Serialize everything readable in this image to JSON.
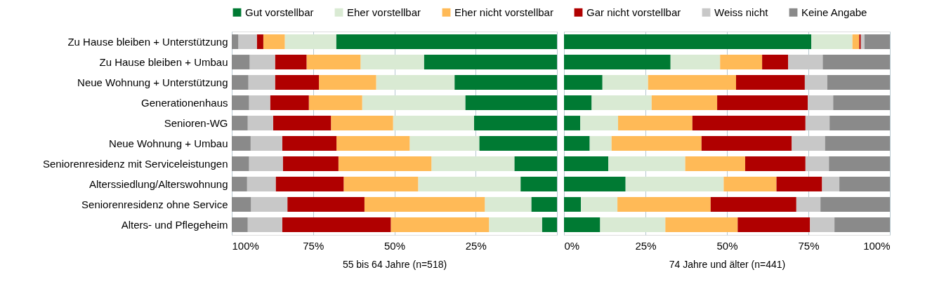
{
  "chart_data": [
    {
      "type": "bar",
      "orientation": "horizontal",
      "stacked": true,
      "xlabel": "55 bis 64 Jahre (n=518)",
      "categories": [
        "Zu Hause bleiben + Unterstützung",
        "Zu Hause bleiben + Umbau",
        "Neue Wohnung + Unterstützung",
        "Generationenhaus",
        "Senioren-WG",
        "Neue Wohnung + Umbau",
        "Seniorenresidenz mit Serviceleistungen",
        "Alterssiedlung/Alterswohnung",
        "Seniorenresidenz ohne Service",
        "Alters- und Pflegeheim"
      ],
      "series": [
        {
          "name": "Gut vorstellbar",
          "color": "#007a33",
          "values": [
            67.9,
            40.9,
            31.5,
            28.2,
            25.5,
            23.9,
            13.1,
            11.2,
            7.9,
            4.6
          ]
        },
        {
          "name": "Eher vorstellbar",
          "color": "#d9ead3",
          "values": [
            15.8,
            19.5,
            24.1,
            31.7,
            24.9,
            21.4,
            25.5,
            31.5,
            14.3,
            16.3
          ]
        },
        {
          "name": "Eher nicht vorstellbar",
          "color": "#ffba57",
          "values": [
            6.6,
            16.6,
            17.6,
            16.4,
            19.1,
            22.5,
            28.6,
            22.9,
            37.0,
            30.2
          ]
        },
        {
          "name": "Gar nicht vorstellbar",
          "color": "#b00000",
          "values": [
            2.0,
            9.7,
            13.5,
            11.9,
            17.8,
            16.7,
            17.1,
            20.9,
            23.7,
            33.4
          ]
        },
        {
          "name": "Weiss nicht",
          "color": "#c8c8c8",
          "values": [
            5.7,
            7.8,
            8.2,
            6.5,
            7.8,
            9.7,
            10.4,
            8.8,
            11.2,
            10.6
          ]
        },
        {
          "name": "Keine Angabe",
          "color": "#8a8a8a",
          "values": [
            2.0,
            5.5,
            5.1,
            5.3,
            4.9,
            5.8,
            5.3,
            4.7,
            5.9,
            4.9
          ]
        }
      ],
      "xlim": [
        100,
        0
      ],
      "xticks": [
        {
          "value": 100,
          "label": "100%"
        },
        {
          "value": 75,
          "label": "75%"
        },
        {
          "value": 50,
          "label": "50%"
        },
        {
          "value": 25,
          "label": "25%"
        },
        {
          "value": 0,
          "label": null
        }
      ],
      "grid": "x",
      "legend": "top"
    },
    {
      "type": "bar",
      "orientation": "horizontal",
      "stacked": true,
      "xlabel": "74 Jahre und älter (n=441)",
      "categories": [
        null,
        null,
        null,
        null,
        null,
        null,
        null,
        null,
        null,
        null
      ],
      "series": [
        {
          "name": "Gut vorstellbar",
          "color": "#007a33",
          "values": [
            75.9,
            32.7,
            11.8,
            8.5,
            5.0,
            7.9,
            13.6,
            18.9,
            5.2,
            11.1
          ]
        },
        {
          "name": "Eher vorstellbar",
          "color": "#d9ead3",
          "values": [
            12.6,
            15.2,
            14.0,
            18.4,
            11.6,
            6.7,
            23.6,
            30.1,
            11.2,
            20.0
          ]
        },
        {
          "name": "Eher nicht vorstellbar",
          "color": "#ffba57",
          "values": [
            2.1,
            12.9,
            27.0,
            20.1,
            22.8,
            27.6,
            18.4,
            16.2,
            28.6,
            22.2
          ]
        },
        {
          "name": "Gar nicht vorstellbar",
          "color": "#b00000",
          "values": [
            0.5,
            8.0,
            21.1,
            27.8,
            34.7,
            27.7,
            18.5,
            14.0,
            26.3,
            22.2
          ]
        },
        {
          "name": "Weiss nicht",
          "color": "#c8c8c8",
          "values": [
            1.1,
            10.6,
            6.9,
            7.8,
            7.4,
            10.2,
            7.2,
            5.3,
            7.4,
            7.5
          ]
        },
        {
          "name": "Keine Angabe",
          "color": "#8a8a8a",
          "values": [
            7.8,
            20.6,
            19.2,
            17.4,
            18.5,
            19.9,
            18.7,
            15.5,
            21.3,
            17.0
          ]
        }
      ],
      "xlim": [
        0,
        100
      ],
      "xticks": [
        {
          "value": 0,
          "label": "0%"
        },
        {
          "value": 25,
          "label": "25%"
        },
        {
          "value": 50,
          "label": "50%"
        },
        {
          "value": 75,
          "label": "75%"
        },
        {
          "value": 100,
          "label": "100%"
        }
      ],
      "grid": "x",
      "tick_labels": "x"
    }
  ]
}
